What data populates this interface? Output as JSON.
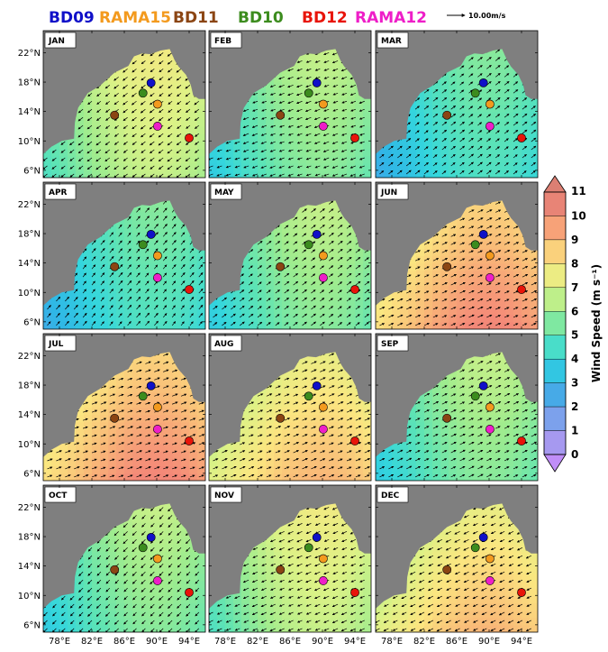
{
  "chart_data": {
    "type": "heatmap",
    "legend": [
      {
        "name": "BD09",
        "color": "#1010c8"
      },
      {
        "name": "RAMA15",
        "color": "#f39a1e"
      },
      {
        "name": "BD11",
        "color": "#8b4513"
      },
      {
        "name": "BD10",
        "color": "#3c8c1e"
      },
      {
        "name": "BD12",
        "color": "#e8140a"
      },
      {
        "name": "RAMA12",
        "color": "#ee1ec8"
      }
    ],
    "reference_vector": "10.00m/s",
    "x_ticks": [
      "78°E",
      "82°E",
      "86°E",
      "90°E",
      "94°E"
    ],
    "x_tick_values": [
      78,
      82,
      86,
      90,
      94
    ],
    "y_ticks": [
      "22°N",
      "18°N",
      "14°N",
      "10°N",
      "6°N"
    ],
    "y_tick_values": [
      22,
      18,
      14,
      10,
      6
    ],
    "xlim": [
      76,
      96
    ],
    "ylim": [
      5,
      25
    ],
    "colorbar": {
      "label": "Wind Speed (m s⁻¹)",
      "ticks": [
        "11",
        "10",
        "9",
        "8",
        "7",
        "6",
        "5",
        "4",
        "3",
        "2",
        "1",
        "0"
      ],
      "range": [
        0,
        11
      ]
    },
    "stations": [
      {
        "name": "BD09",
        "lon": 89.3,
        "lat": 17.9,
        "color": "#1010c8"
      },
      {
        "name": "RAMA15",
        "lon": 90.1,
        "lat": 15.0,
        "color": "#f39a1e"
      },
      {
        "name": "BD11",
        "lon": 84.8,
        "lat": 13.5,
        "color": "#8b4513"
      },
      {
        "name": "BD10",
        "lon": 88.3,
        "lat": 16.5,
        "color": "#3c8c1e"
      },
      {
        "name": "BD12",
        "lon": 94.0,
        "lat": 10.4,
        "color": "#e8140a"
      },
      {
        "name": "RAMA12",
        "lon": 90.1,
        "lat": 12.0,
        "color": "#ee1ec8"
      }
    ],
    "panels": [
      {
        "month": "JAN",
        "wind_u": -4.5,
        "wind_v": -3.5,
        "speed_mean": 6
      },
      {
        "month": "FEB",
        "wind_u": -4.0,
        "wind_v": -1.5,
        "speed_mean": 5
      },
      {
        "month": "MAR",
        "wind_u": 2.5,
        "wind_v": 2.0,
        "speed_mean": 4
      },
      {
        "month": "APR",
        "wind_u": 3.0,
        "wind_v": 3.5,
        "speed_mean": 4
      },
      {
        "month": "MAY",
        "wind_u": 4.5,
        "wind_v": 3.5,
        "speed_mean": 5
      },
      {
        "month": "JUN",
        "wind_u": 7.5,
        "wind_v": 3.5,
        "speed_mean": 8
      },
      {
        "month": "JUL",
        "wind_u": 8.0,
        "wind_v": 3.0,
        "speed_mean": 8
      },
      {
        "month": "AUG",
        "wind_u": 7.0,
        "wind_v": 3.0,
        "speed_mean": 7
      },
      {
        "month": "SEP",
        "wind_u": 5.0,
        "wind_v": 2.5,
        "speed_mean": 5
      },
      {
        "month": "OCT",
        "wind_u": -1.5,
        "wind_v": -1.5,
        "speed_mean": 5
      },
      {
        "month": "NOV",
        "wind_u": -4.5,
        "wind_v": -2.0,
        "speed_mean": 6
      },
      {
        "month": "DEC",
        "wind_u": -5.0,
        "wind_v": -2.5,
        "speed_mean": 7
      }
    ]
  }
}
